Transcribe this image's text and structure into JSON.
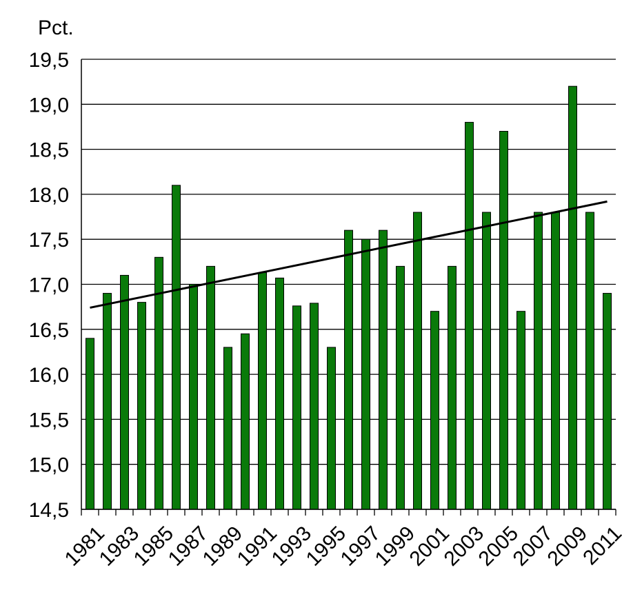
{
  "chart_data": {
    "type": "bar",
    "y_label": "Pct.",
    "categories": [
      "1981",
      null,
      "1983",
      null,
      "1985",
      null,
      "1987",
      null,
      "1989",
      null,
      "1991",
      null,
      "1993",
      null,
      "1995",
      null,
      "1997",
      null,
      "1999",
      null,
      "2001",
      null,
      "2003",
      null,
      "2005",
      null,
      "2007",
      null,
      "2009",
      null,
      "2011"
    ],
    "values": [
      16.4,
      16.9,
      17.1,
      16.8,
      17.3,
      18.1,
      17.0,
      17.2,
      16.3,
      16.45,
      17.13,
      17.07,
      16.76,
      16.79,
      16.3,
      17.6,
      17.5,
      17.6,
      17.2,
      17.8,
      16.7,
      17.2,
      18.8,
      17.8,
      18.7,
      16.7,
      17.8,
      17.8,
      19.2,
      17.8,
      16.9
    ],
    "color": "#0a7a0a",
    "trendline": [
      16.74,
      17.92
    ],
    "ylim": [
      14.5,
      19.5
    ],
    "yticks": [
      {
        "value": 14.5,
        "label": "14,5"
      },
      {
        "value": 15.0,
        "label": "15,0"
      },
      {
        "value": 15.5,
        "label": "15,5"
      },
      {
        "value": 16.0,
        "label": "16,0"
      },
      {
        "value": 16.5,
        "label": "16,5"
      },
      {
        "value": 17.0,
        "label": "17,0"
      },
      {
        "value": 17.5,
        "label": "17,5"
      },
      {
        "value": 18.0,
        "label": "18,0"
      },
      {
        "value": 18.5,
        "label": "18,5"
      },
      {
        "value": 19.0,
        "label": "19,0"
      },
      {
        "value": 19.5,
        "label": "19,5"
      }
    ],
    "grid": true
  }
}
